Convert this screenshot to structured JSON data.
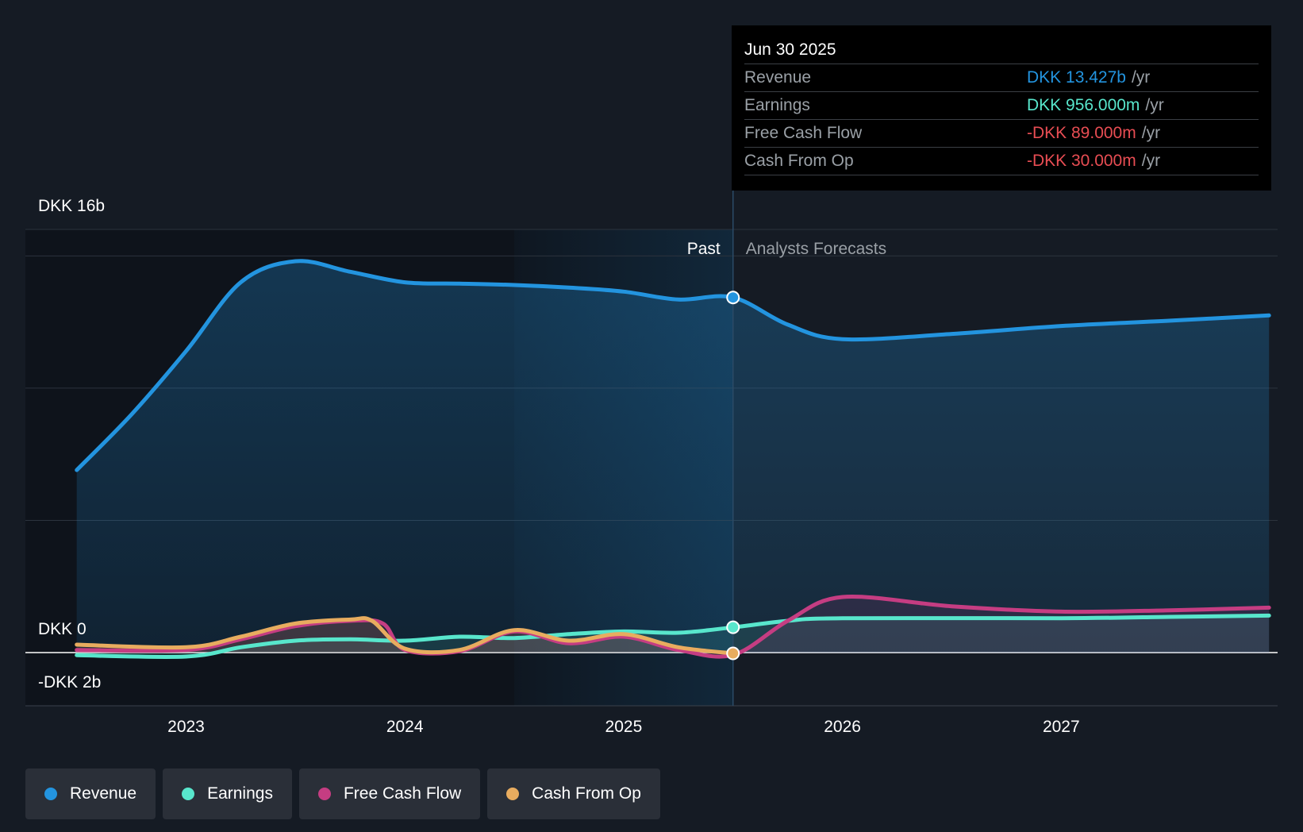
{
  "chart_data": {
    "type": "line",
    "x_unit": "year",
    "x_range": [
      2022.5,
      2027.95
    ],
    "y_unit": "DKK billions",
    "y_range": [
      -2,
      16
    ],
    "y_gridlines": [
      0,
      5,
      10,
      15,
      16
    ],
    "y_tick_labels": [
      {
        "value": 16,
        "label": "DKK 16b"
      },
      {
        "value": 0,
        "label": "DKK 0"
      },
      {
        "value": -2,
        "label": "-DKK 2b"
      }
    ],
    "x_tick_labels": [
      {
        "value": 2023,
        "label": "2023"
      },
      {
        "value": 2024,
        "label": "2024"
      },
      {
        "value": 2025,
        "label": "2025"
      },
      {
        "value": 2026,
        "label": "2026"
      },
      {
        "value": 2027,
        "label": "2027"
      }
    ],
    "past_label": "Past",
    "forecast_label": "Analysts Forecasts",
    "highlight_start": 2024.5,
    "divider_x": 2025.5,
    "series": [
      {
        "name": "Revenue",
        "color": "#2394df",
        "points": [
          [
            2022.5,
            6.9
          ],
          [
            2022.75,
            9.0
          ],
          [
            2023.0,
            11.4
          ],
          [
            2023.25,
            14.0
          ],
          [
            2023.5,
            14.8
          ],
          [
            2023.75,
            14.4
          ],
          [
            2024.0,
            14.0
          ],
          [
            2024.25,
            13.95
          ],
          [
            2024.5,
            13.9
          ],
          [
            2024.75,
            13.8
          ],
          [
            2025.0,
            13.65
          ],
          [
            2025.25,
            13.35
          ],
          [
            2025.5,
            13.427
          ],
          [
            2025.75,
            12.4
          ],
          [
            2026.0,
            11.85
          ],
          [
            2026.5,
            12.05
          ],
          [
            2027.0,
            12.35
          ],
          [
            2027.5,
            12.55
          ],
          [
            2027.95,
            12.75
          ]
        ]
      },
      {
        "name": "Earnings",
        "color": "#58e6cc",
        "points": [
          [
            2022.5,
            -0.1
          ],
          [
            2023.0,
            -0.15
          ],
          [
            2023.25,
            0.2
          ],
          [
            2023.5,
            0.45
          ],
          [
            2023.75,
            0.5
          ],
          [
            2024.0,
            0.45
          ],
          [
            2024.25,
            0.6
          ],
          [
            2024.5,
            0.55
          ],
          [
            2024.75,
            0.7
          ],
          [
            2025.0,
            0.8
          ],
          [
            2025.25,
            0.75
          ],
          [
            2025.5,
            0.956
          ],
          [
            2025.75,
            1.2
          ],
          [
            2026.0,
            1.3
          ],
          [
            2027.0,
            1.3
          ],
          [
            2027.5,
            1.35
          ],
          [
            2027.95,
            1.4
          ]
        ]
      },
      {
        "name": "Free Cash Flow",
        "color": "#c53d82",
        "points": [
          [
            2022.5,
            0.1
          ],
          [
            2023.0,
            0.1
          ],
          [
            2023.25,
            0.5
          ],
          [
            2023.5,
            1.0
          ],
          [
            2023.75,
            1.2
          ],
          [
            2023.9,
            1.1
          ],
          [
            2024.0,
            0.1
          ],
          [
            2024.25,
            0.05
          ],
          [
            2024.5,
            0.8
          ],
          [
            2024.75,
            0.35
          ],
          [
            2025.0,
            0.6
          ],
          [
            2025.25,
            0.1
          ],
          [
            2025.5,
            -0.089
          ],
          [
            2025.75,
            1.2
          ],
          [
            2026.0,
            2.1
          ],
          [
            2026.5,
            1.75
          ],
          [
            2027.0,
            1.55
          ],
          [
            2027.5,
            1.6
          ],
          [
            2027.95,
            1.7
          ]
        ]
      },
      {
        "name": "Cash From Op",
        "color": "#e8ac5f",
        "points": [
          [
            2022.5,
            0.3
          ],
          [
            2023.0,
            0.2
          ],
          [
            2023.25,
            0.6
          ],
          [
            2023.5,
            1.1
          ],
          [
            2023.75,
            1.25
          ],
          [
            2023.85,
            1.2
          ],
          [
            2024.0,
            0.15
          ],
          [
            2024.25,
            0.1
          ],
          [
            2024.5,
            0.85
          ],
          [
            2024.75,
            0.45
          ],
          [
            2025.0,
            0.7
          ],
          [
            2025.25,
            0.2
          ],
          [
            2025.5,
            -0.03
          ]
        ]
      }
    ]
  },
  "tooltip": {
    "date": "Jun 30 2025",
    "rows": [
      {
        "label": "Revenue",
        "value": "DKK 13.427b",
        "unit": "/yr",
        "color": "#2394df"
      },
      {
        "label": "Earnings",
        "value": "DKK 956.000m",
        "unit": "/yr",
        "color": "#58e6cc"
      },
      {
        "label": "Free Cash Flow",
        "value": "-DKK 89.000m",
        "unit": "/yr",
        "color": "#e84d53"
      },
      {
        "label": "Cash From Op",
        "value": "-DKK 30.000m",
        "unit": "/yr",
        "color": "#e84d53"
      }
    ]
  },
  "legend": [
    {
      "label": "Revenue",
      "color": "#2394df"
    },
    {
      "label": "Earnings",
      "color": "#58e6cc"
    },
    {
      "label": "Free Cash Flow",
      "color": "#c53d82"
    },
    {
      "label": "Cash From Op",
      "color": "#e8ac5f"
    }
  ]
}
